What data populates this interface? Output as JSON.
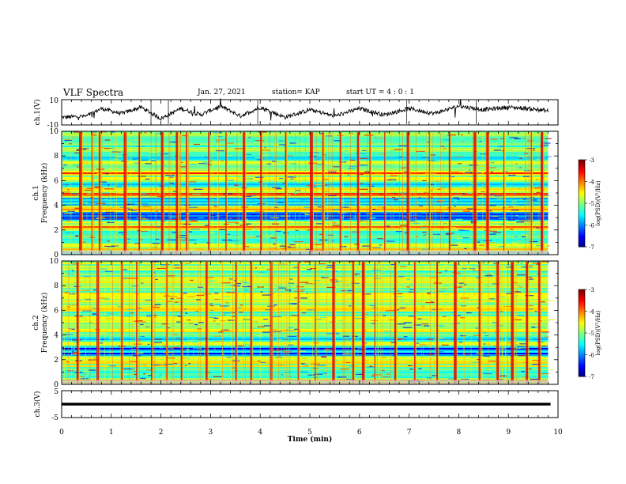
{
  "header": {
    "title": "VLF Spectra",
    "date": "Jan. 27, 2021",
    "station": "station= KAP",
    "start": "start  UT =   4 : 0  : 1"
  },
  "chart_data": [
    {
      "type": "line",
      "panel": "waveform-ch1",
      "ylabel": "ch.1(V)",
      "ylim": [
        -10,
        10
      ],
      "yticks": [
        "10",
        "-10"
      ],
      "xlim": [
        0,
        10
      ],
      "color": "#000000",
      "approx_trend": {
        "x": [
          0,
          0.5,
          0.8,
          1.2,
          1.6,
          2.0,
          2.4,
          2.8,
          3.2,
          3.6,
          4.0,
          4.5,
          5.0,
          5.5,
          6.0,
          6.5,
          7.0,
          7.5,
          8.0,
          8.5,
          9.0,
          9.4,
          9.8
        ],
        "y": [
          -4,
          -3,
          3,
          -1,
          4,
          -5,
          3,
          -2,
          5,
          -3,
          4,
          -4,
          2,
          -3,
          3,
          -2,
          3,
          -1,
          5,
          2,
          4,
          3,
          1
        ]
      }
    },
    {
      "type": "heatmap",
      "panel": "spectrogram-ch1",
      "ylabel": "Frequency (kHz)",
      "channel_label": "ch.1",
      "yticks": [
        "0",
        "2",
        "4",
        "6",
        "8",
        "10"
      ],
      "ylim": [
        0,
        10
      ],
      "xlim": [
        0,
        9.8
      ],
      "colorbar": {
        "label": "log(PSD)(V²/Hz)",
        "ticks": [
          "-3",
          "-4",
          "-5",
          "-6",
          "-7"
        ],
        "range": [
          -7,
          -3
        ]
      },
      "background_level": -5.3,
      "bands": [
        {
          "freq": 0.4,
          "level": -3.9
        },
        {
          "freq": 0.8,
          "level": -4.3
        },
        {
          "freq": 1.5,
          "level": -5.0
        },
        {
          "freq": 2.2,
          "level": -3.4
        },
        {
          "freq": 2.6,
          "level": -4.5
        },
        {
          "freq": 3.0,
          "level": -6.4
        },
        {
          "freq": 3.3,
          "level": -6.6
        },
        {
          "freq": 3.7,
          "level": -3.7
        },
        {
          "freq": 4.3,
          "level": -5.8
        },
        {
          "freq": 4.9,
          "level": -3.4
        },
        {
          "freq": 5.3,
          "level": -4.3
        },
        {
          "freq": 6.2,
          "level": -4.4
        },
        {
          "freq": 6.6,
          "level": -3.5
        },
        {
          "freq": 7.5,
          "level": -4.5
        },
        {
          "freq": 8.6,
          "level": -4.6
        },
        {
          "freq": 9.7,
          "level": -4.7
        }
      ],
      "bursts": [
        0.35,
        0.6,
        0.75,
        1.25,
        1.55,
        2.0,
        2.3,
        2.5,
        2.95,
        3.3,
        3.65,
        4.0,
        4.5,
        5.0,
        5.25,
        5.6,
        5.95,
        6.2,
        6.5,
        6.95,
        7.4,
        7.8,
        8.3,
        8.55,
        8.9,
        9.45,
        9.65
      ]
    },
    {
      "type": "heatmap",
      "panel": "spectrogram-ch2",
      "ylabel": "Frequency (kHz)",
      "channel_label": "ch.2",
      "yticks": [
        "0",
        "2",
        "4",
        "6",
        "8",
        "10"
      ],
      "ylim": [
        0,
        10
      ],
      "xlim": [
        0,
        9.8
      ],
      "colorbar": {
        "label": "log(PSD)(V²/Hz)",
        "ticks": [
          "-3",
          "-4",
          "-5",
          "-6",
          "-7"
        ],
        "range": [
          -7,
          -3
        ]
      },
      "background_level": -4.9,
      "bands": [
        {
          "freq": 0.3,
          "level": -4.0
        },
        {
          "freq": 1.0,
          "level": -5.8
        },
        {
          "freq": 1.8,
          "level": -4.2
        },
        {
          "freq": 2.5,
          "level": -6.6
        },
        {
          "freq": 2.9,
          "level": -6.8
        },
        {
          "freq": 3.3,
          "level": -4.6
        },
        {
          "freq": 3.7,
          "level": -6.2
        },
        {
          "freq": 4.4,
          "level": -4.4
        },
        {
          "freq": 5.2,
          "level": -4.7
        },
        {
          "freq": 6.2,
          "level": -4.3
        },
        {
          "freq": 7.2,
          "level": -4.5
        },
        {
          "freq": 8.3,
          "level": -4.4
        },
        {
          "freq": 9.5,
          "level": -4.6
        }
      ],
      "bursts": [
        0.3,
        0.7,
        1.2,
        1.5,
        1.8,
        2.1,
        2.4,
        2.9,
        3.5,
        3.8,
        4.2,
        4.75,
        5.1,
        5.45,
        5.85,
        6.05,
        6.3,
        6.7,
        7.1,
        7.55,
        7.9,
        8.4,
        8.75,
        9.05,
        9.35,
        9.6
      ]
    },
    {
      "type": "line",
      "panel": "waveform-ch3",
      "ylabel": "ch.3(V)",
      "ylim": [
        -5,
        5
      ],
      "yticks": [
        "5",
        "-5"
      ],
      "xlim": [
        0,
        10
      ],
      "color": "#000000",
      "signal": "saturated constant band",
      "y_band": [
        -0.5,
        0.5
      ]
    }
  ],
  "x_axis": {
    "label": "Time  (min)",
    "ticks": [
      "0",
      "1",
      "2",
      "3",
      "4",
      "5",
      "6",
      "7",
      "8",
      "9",
      "10"
    ]
  }
}
